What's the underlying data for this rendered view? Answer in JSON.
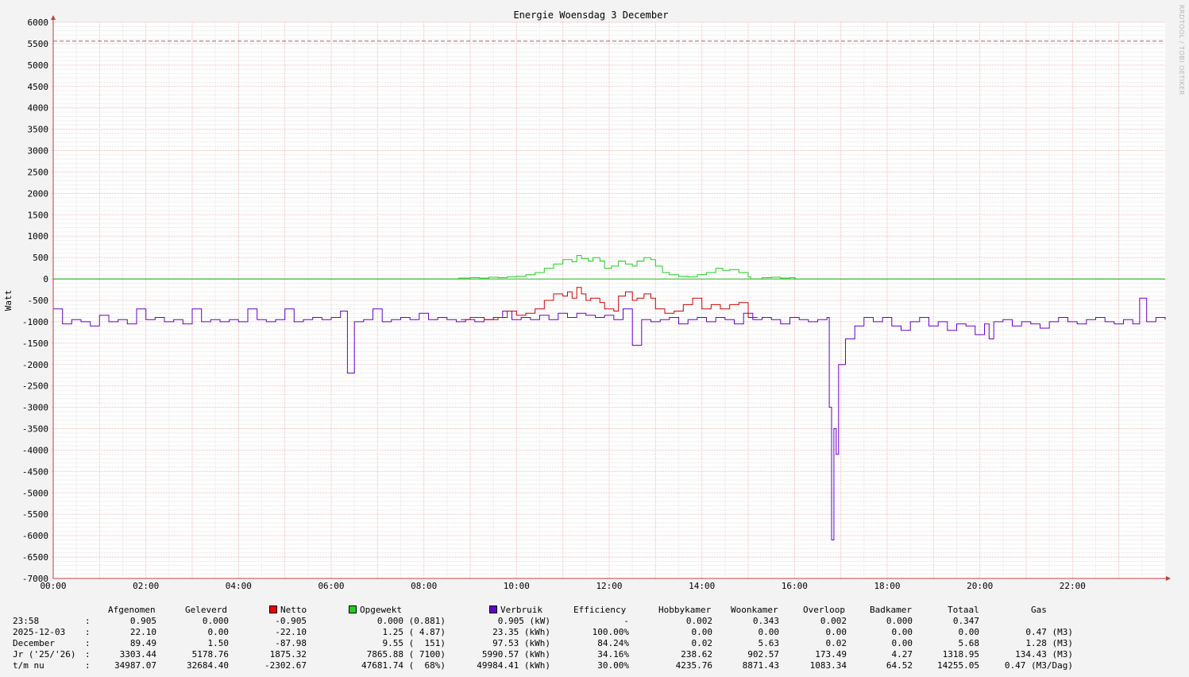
{
  "chart_data": {
    "type": "line",
    "title": "Energie Woensdag  3 December",
    "ylabel": "Watt",
    "xlabel": "",
    "ylim": [
      -7000,
      6000
    ],
    "yticks": [
      6000,
      5500,
      5000,
      4500,
      4000,
      3500,
      3000,
      2500,
      2000,
      1500,
      1000,
      500,
      0,
      -500,
      -1000,
      -1500,
      -2000,
      -2500,
      -3000,
      -3500,
      -4000,
      -4500,
      -5000,
      -5500,
      -6000,
      -6500,
      -7000
    ],
    "xticks": [
      "00:00",
      "02:00",
      "04:00",
      "06:00",
      "08:00",
      "10:00",
      "12:00",
      "14:00",
      "16:00",
      "18:00",
      "20:00",
      "22:00"
    ],
    "xlim_hours": [
      0,
      24
    ],
    "grid": true,
    "hrule": {
      "value": 5560,
      "style": "dashed",
      "color": "#996666"
    },
    "zero_line_color": "#22bb22",
    "watermark": "RRDTOOL / TOBI OETIKER",
    "series": [
      {
        "name": "Opgewekt",
        "color": "#22cc22",
        "points": [
          [
            0,
            0
          ],
          [
            8.7,
            0
          ],
          [
            8.75,
            20
          ],
          [
            9.0,
            30
          ],
          [
            9.2,
            20
          ],
          [
            9.4,
            40
          ],
          [
            9.6,
            30
          ],
          [
            9.8,
            50
          ],
          [
            10.0,
            60
          ],
          [
            10.2,
            100
          ],
          [
            10.4,
            150
          ],
          [
            10.6,
            250
          ],
          [
            10.8,
            350
          ],
          [
            11.0,
            450
          ],
          [
            11.2,
            400
          ],
          [
            11.3,
            550
          ],
          [
            11.4,
            480
          ],
          [
            11.55,
            420
          ],
          [
            11.65,
            500
          ],
          [
            11.8,
            420
          ],
          [
            11.9,
            250
          ],
          [
            12.05,
            300
          ],
          [
            12.2,
            420
          ],
          [
            12.35,
            350
          ],
          [
            12.5,
            300
          ],
          [
            12.6,
            420
          ],
          [
            12.75,
            500
          ],
          [
            12.9,
            450
          ],
          [
            13.0,
            300
          ],
          [
            13.15,
            150
          ],
          [
            13.3,
            100
          ],
          [
            13.5,
            60
          ],
          [
            13.7,
            50
          ],
          [
            13.9,
            100
          ],
          [
            14.1,
            150
          ],
          [
            14.3,
            250
          ],
          [
            14.45,
            200
          ],
          [
            14.6,
            220
          ],
          [
            14.8,
            150
          ],
          [
            15.0,
            50
          ],
          [
            15.05,
            0
          ],
          [
            15.25,
            0
          ],
          [
            15.3,
            30
          ],
          [
            15.5,
            40
          ],
          [
            15.7,
            20
          ],
          [
            15.9,
            30
          ],
          [
            16.0,
            20
          ],
          [
            16.02,
            0
          ],
          [
            24,
            0
          ]
        ]
      },
      {
        "name": "Netto",
        "color": "#cc0000",
        "points": [
          [
            8.8,
            -950
          ],
          [
            9.0,
            -900
          ],
          [
            9.3,
            -950
          ],
          [
            9.6,
            -900
          ],
          [
            9.8,
            -750
          ],
          [
            10.0,
            -850
          ],
          [
            10.2,
            -800
          ],
          [
            10.4,
            -700
          ],
          [
            10.6,
            -500
          ],
          [
            10.8,
            -350
          ],
          [
            11.0,
            -400
          ],
          [
            11.1,
            -300
          ],
          [
            11.2,
            -450
          ],
          [
            11.3,
            -200
          ],
          [
            11.4,
            -350
          ],
          [
            11.5,
            -500
          ],
          [
            11.6,
            -450
          ],
          [
            11.8,
            -550
          ],
          [
            11.9,
            -700
          ],
          [
            12.1,
            -750
          ],
          [
            12.2,
            -400
          ],
          [
            12.35,
            -300
          ],
          [
            12.5,
            -500
          ],
          [
            12.6,
            -450
          ],
          [
            12.75,
            -350
          ],
          [
            12.9,
            -450
          ],
          [
            13.0,
            -700
          ],
          [
            13.2,
            -800
          ],
          [
            13.4,
            -750
          ],
          [
            13.6,
            -600
          ],
          [
            13.8,
            -450
          ],
          [
            14.0,
            -700
          ],
          [
            14.2,
            -600
          ],
          [
            14.4,
            -700
          ],
          [
            14.6,
            -600
          ],
          [
            14.8,
            -550
          ],
          [
            15.0,
            -900
          ],
          [
            15.2,
            -900
          ]
        ]
      },
      {
        "name": "Verbruik",
        "color": "#6600cc",
        "points": [
          [
            0,
            -700
          ],
          [
            0.2,
            -1050
          ],
          [
            0.4,
            -950
          ],
          [
            0.6,
            -1000
          ],
          [
            0.8,
            -1100
          ],
          [
            1.0,
            -850
          ],
          [
            1.2,
            -1000
          ],
          [
            1.4,
            -950
          ],
          [
            1.6,
            -1050
          ],
          [
            1.8,
            -700
          ],
          [
            2.0,
            -950
          ],
          [
            2.2,
            -900
          ],
          [
            2.4,
            -1000
          ],
          [
            2.6,
            -950
          ],
          [
            2.8,
            -1050
          ],
          [
            3.0,
            -700
          ],
          [
            3.2,
            -1000
          ],
          [
            3.4,
            -950
          ],
          [
            3.6,
            -1000
          ],
          [
            3.8,
            -950
          ],
          [
            4.0,
            -1000
          ],
          [
            4.2,
            -700
          ],
          [
            4.4,
            -950
          ],
          [
            4.6,
            -1000
          ],
          [
            4.8,
            -950
          ],
          [
            5.0,
            -700
          ],
          [
            5.2,
            -1000
          ],
          [
            5.4,
            -950
          ],
          [
            5.6,
            -900
          ],
          [
            5.8,
            -950
          ],
          [
            6.0,
            -900
          ],
          [
            6.2,
            -750
          ],
          [
            6.35,
            -2200
          ],
          [
            6.5,
            -1000
          ],
          [
            6.7,
            -950
          ],
          [
            6.9,
            -700
          ],
          [
            7.1,
            -1000
          ],
          [
            7.3,
            -950
          ],
          [
            7.5,
            -900
          ],
          [
            7.7,
            -950
          ],
          [
            7.9,
            -800
          ],
          [
            8.1,
            -950
          ],
          [
            8.3,
            -900
          ],
          [
            8.5,
            -950
          ],
          [
            8.7,
            -1000
          ],
          [
            8.9,
            -950
          ],
          [
            9.1,
            -1000
          ],
          [
            9.3,
            -950
          ],
          [
            9.5,
            -900
          ],
          [
            9.7,
            -750
          ],
          [
            9.9,
            -950
          ],
          [
            10.1,
            -900
          ],
          [
            10.3,
            -950
          ],
          [
            10.5,
            -850
          ],
          [
            10.7,
            -950
          ],
          [
            10.9,
            -800
          ],
          [
            11.1,
            -900
          ],
          [
            11.3,
            -800
          ],
          [
            11.5,
            -850
          ],
          [
            11.7,
            -900
          ],
          [
            11.9,
            -850
          ],
          [
            12.1,
            -950
          ],
          [
            12.3,
            -700
          ],
          [
            12.5,
            -1550
          ],
          [
            12.7,
            -950
          ],
          [
            12.9,
            -1000
          ],
          [
            13.1,
            -950
          ],
          [
            13.3,
            -900
          ],
          [
            13.5,
            -1050
          ],
          [
            13.7,
            -950
          ],
          [
            13.9,
            -900
          ],
          [
            14.1,
            -1000
          ],
          [
            14.3,
            -900
          ],
          [
            14.5,
            -950
          ],
          [
            14.7,
            -1050
          ],
          [
            14.9,
            -800
          ],
          [
            15.1,
            -950
          ],
          [
            15.3,
            -900
          ],
          [
            15.5,
            -950
          ],
          [
            15.7,
            -1050
          ],
          [
            15.9,
            -900
          ],
          [
            16.1,
            -950
          ],
          [
            16.3,
            -1000
          ],
          [
            16.5,
            -950
          ],
          [
            16.7,
            -900
          ],
          [
            16.75,
            -3000
          ],
          [
            16.8,
            -6100
          ],
          [
            16.85,
            -3500
          ],
          [
            16.9,
            -4100
          ],
          [
            16.95,
            -2000
          ],
          [
            17.1,
            -1400
          ],
          [
            17.3,
            -1100
          ],
          [
            17.5,
            -900
          ],
          [
            17.7,
            -1000
          ],
          [
            17.9,
            -900
          ],
          [
            18.1,
            -1100
          ],
          [
            18.3,
            -1200
          ],
          [
            18.5,
            -1000
          ],
          [
            18.7,
            -900
          ],
          [
            18.9,
            -1100
          ],
          [
            19.1,
            -1000
          ],
          [
            19.3,
            -1200
          ],
          [
            19.5,
            -1050
          ],
          [
            19.7,
            -1100
          ],
          [
            19.9,
            -1300
          ],
          [
            20.1,
            -1050
          ],
          [
            20.2,
            -1400
          ],
          [
            20.3,
            -1000
          ],
          [
            20.5,
            -950
          ],
          [
            20.7,
            -1100
          ],
          [
            20.9,
            -1000
          ],
          [
            21.1,
            -1050
          ],
          [
            21.3,
            -1150
          ],
          [
            21.5,
            -1000
          ],
          [
            21.7,
            -900
          ],
          [
            21.9,
            -1000
          ],
          [
            22.1,
            -1050
          ],
          [
            22.3,
            -950
          ],
          [
            22.5,
            -900
          ],
          [
            22.7,
            -1000
          ],
          [
            22.9,
            -1050
          ],
          [
            23.1,
            -950
          ],
          [
            23.3,
            -1050
          ],
          [
            23.45,
            -450
          ],
          [
            23.6,
            -1000
          ],
          [
            23.8,
            -900
          ],
          [
            24,
            -950
          ]
        ]
      }
    ]
  },
  "legend": {
    "headers": {
      "afgenomen": "Afgenomen",
      "geleverd": "Geleverd",
      "netto": "Netto",
      "opgewekt": "Opgewekt",
      "verbruik": "Verbruik",
      "efficiency": "Efficiency",
      "hobbykamer": "Hobbykamer",
      "woonkamer": "Woonkamer",
      "overloop": "Overloop",
      "badkamer": "Badkamer",
      "totaal": "Totaal",
      "gas": "Gas"
    },
    "swatch_colors": {
      "netto": "#ee0000",
      "opgewekt": "#22cc22",
      "verbruik": "#6600cc"
    },
    "rows": [
      {
        "label": "23:58",
        "sep": ":",
        "afgenomen": "0.905",
        "geleverd": "0.000",
        "netto": "-0.905",
        "opgewekt": "0.000 (0.881)",
        "verbruik": "0.905 (kW)",
        "efficiency": "-",
        "hobbykamer": "0.002",
        "woonkamer": "0.343",
        "overloop": "0.002",
        "badkamer": "0.000",
        "totaal": "0.347",
        "gas": ""
      },
      {
        "label": "2025-12-03",
        "sep": ":",
        "afgenomen": "22.10",
        "geleverd": "0.00",
        "netto": "-22.10",
        "opgewekt": "1.25 ( 4.87)",
        "verbruik": "23.35 (kWh)",
        "efficiency": "100.00%",
        "hobbykamer": "0.00",
        "woonkamer": "0.00",
        "overloop": "0.00",
        "badkamer": "0.00",
        "totaal": "0.00",
        "gas": "0.47 (M3)"
      },
      {
        "label": "December",
        "sep": ":",
        "afgenomen": "89.49",
        "geleverd": "1.50",
        "netto": "-87.98",
        "opgewekt": "9.55 (  151)",
        "verbruik": "97.53 (kWh)",
        "efficiency": "84.24%",
        "hobbykamer": "0.02",
        "woonkamer": "5.63",
        "overloop": "0.02",
        "badkamer": "0.00",
        "totaal": "5.68",
        "gas": "1.28 (M3)"
      },
      {
        "label": "Jr ('25/'26)",
        "sep": ":",
        "afgenomen": "3303.44",
        "geleverd": "5178.76",
        "netto": "1875.32",
        "opgewekt": "7865.88 ( 7100)",
        "verbruik": "5990.57 (kWh)",
        "efficiency": "34.16%",
        "hobbykamer": "238.62",
        "woonkamer": "902.57",
        "overloop": "173.49",
        "badkamer": "4.27",
        "totaal": "1318.95",
        "gas": "134.43 (M3)"
      },
      {
        "label": "t/m nu",
        "sep": ":",
        "afgenomen": "34987.07",
        "geleverd": "32684.40",
        "netto": "-2302.67",
        "opgewekt": "47681.74 (  68%)",
        "verbruik": "49984.41 (kWh)",
        "efficiency": "30.00%",
        "hobbykamer": "4235.76",
        "woonkamer": "8871.43",
        "overloop": "1083.34",
        "badkamer": "64.52",
        "totaal": "14255.05",
        "gas": "0.47 (M3/Dag)"
      }
    ]
  }
}
